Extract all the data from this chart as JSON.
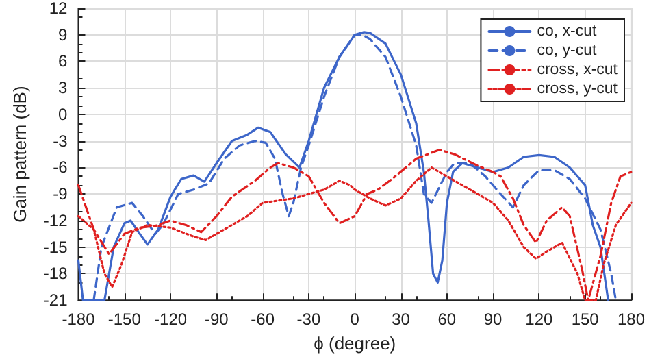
{
  "chart_data": {
    "type": "line",
    "xlabel": "ϕ (degree)",
    "ylabel": "Gain pattern (dB)",
    "xlim": [
      -180,
      180
    ],
    "xticks": [
      -180,
      -150,
      -120,
      -90,
      -60,
      -30,
      0,
      30,
      60,
      90,
      120,
      150,
      180
    ],
    "ylim": [
      -21,
      12
    ],
    "yticks": [
      -21,
      -18,
      -15,
      -12,
      -9,
      -6,
      -3,
      0,
      3,
      6,
      9,
      12
    ],
    "grid": true,
    "legend": "top right",
    "marker": "none",
    "series": [
      {
        "name": "co, x-cut",
        "color": "#3d66c9",
        "line_style": "solid",
        "x": [
          -180,
          -177,
          -163,
          -157,
          -150,
          -146,
          -140,
          -135,
          -128,
          -120,
          -113,
          -105,
          -98,
          -90,
          -80,
          -70,
          -63,
          -55,
          -45,
          -36,
          -30,
          -20,
          -10,
          0,
          6,
          10,
          20,
          30,
          40,
          45,
          48,
          51,
          54,
          57,
          60,
          64,
          70,
          80,
          90,
          100,
          110,
          120,
          130,
          140,
          150,
          155,
          160,
          165
        ],
        "values": [
          -16.5,
          -21,
          -21,
          -15,
          -12.3,
          -12,
          -13.5,
          -14.7,
          -13,
          -9.3,
          -7.3,
          -6.9,
          -7.6,
          -5.5,
          -3,
          -2.3,
          -1.5,
          -2,
          -4.5,
          -6,
          -3,
          3,
          6.5,
          9,
          9.3,
          9.2,
          8,
          4.5,
          -1,
          -6.5,
          -12,
          -18,
          -19,
          -16.5,
          -10,
          -6.5,
          -5.5,
          -6,
          -6.5,
          -6,
          -4.8,
          -4.6,
          -4.8,
          -6,
          -8,
          -12.5,
          -15,
          -21
        ]
      },
      {
        "name": "co, y-cut",
        "color": "#3d66c9",
        "line_style": "dashed",
        "x": [
          -170,
          -165,
          -155,
          -145,
          -138,
          -130,
          -125,
          -115,
          -105,
          -95,
          -85,
          -75,
          -65,
          -58,
          -52,
          -47,
          -43,
          -40,
          -35,
          -30,
          -20,
          -10,
          0,
          5,
          10,
          20,
          30,
          40,
          45,
          50,
          60,
          65,
          75,
          85,
          95,
          103,
          110,
          120,
          130,
          140,
          150,
          160,
          167,
          170
        ],
        "values": [
          -21,
          -15,
          -10.5,
          -10,
          -11.5,
          -13.5,
          -12.5,
          -9,
          -8.5,
          -7.8,
          -5,
          -3.5,
          -3,
          -3.2,
          -5,
          -9,
          -11.5,
          -10,
          -6,
          -3.5,
          2,
          6.5,
          9,
          9,
          8.5,
          6.5,
          2,
          -3.5,
          -9,
          -10,
          -6.5,
          -5.5,
          -5.5,
          -7,
          -9,
          -10.5,
          -8,
          -6.3,
          -6.3,
          -7.3,
          -9.5,
          -13,
          -18,
          -21
        ]
      },
      {
        "name": "cross, x-cut",
        "color": "#e02020",
        "line_style": "dashdot",
        "x": [
          -180,
          -170,
          -160,
          -150,
          -140,
          -130,
          -120,
          -110,
          -100,
          -90,
          -80,
          -65,
          -55,
          -50,
          -40,
          -30,
          -20,
          -10,
          0,
          8,
          15,
          25,
          40,
          55,
          65,
          80,
          90,
          95,
          103,
          110,
          118,
          125,
          135,
          140,
          148,
          152,
          160,
          167,
          173,
          180
        ],
        "values": [
          -8,
          -13,
          -15.8,
          -13.5,
          -12.8,
          -12.6,
          -12,
          -12.5,
          -13.3,
          -11.5,
          -9.3,
          -7.5,
          -6,
          -5.5,
          -6,
          -7,
          -10,
          -12.3,
          -11.5,
          -9,
          -8.5,
          -7.2,
          -5,
          -4,
          -4.5,
          -5.8,
          -6.5,
          -7,
          -9.5,
          -12.5,
          -14.5,
          -12,
          -10.5,
          -11.5,
          -17.5,
          -21,
          -16,
          -10,
          -7,
          -6.5
        ]
      },
      {
        "name": "cross, y-cut",
        "color": "#e02020",
        "line_style": "dotted",
        "x": [
          -180,
          -170,
          -163,
          -158,
          -152,
          -145,
          -135,
          -120,
          -105,
          -97,
          -85,
          -70,
          -60,
          -40,
          -20,
          -10,
          -3,
          0,
          10,
          20,
          30,
          40,
          50,
          60,
          70,
          80,
          90,
          100,
          110,
          118,
          125,
          135,
          145,
          150,
          157,
          162,
          170,
          180
        ],
        "values": [
          -11.5,
          -13,
          -18,
          -19.5,
          -17,
          -13.3,
          -12.5,
          -12.8,
          -13.8,
          -14.2,
          -13,
          -11.5,
          -10,
          -9.5,
          -8.5,
          -7.5,
          -8,
          -8.5,
          -9.5,
          -10.3,
          -9.5,
          -7.5,
          -6,
          -7,
          -8,
          -9,
          -10,
          -12,
          -15,
          -16.3,
          -15.5,
          -14.5,
          -18,
          -21,
          -21,
          -17,
          -12.5,
          -10
        ]
      }
    ]
  }
}
